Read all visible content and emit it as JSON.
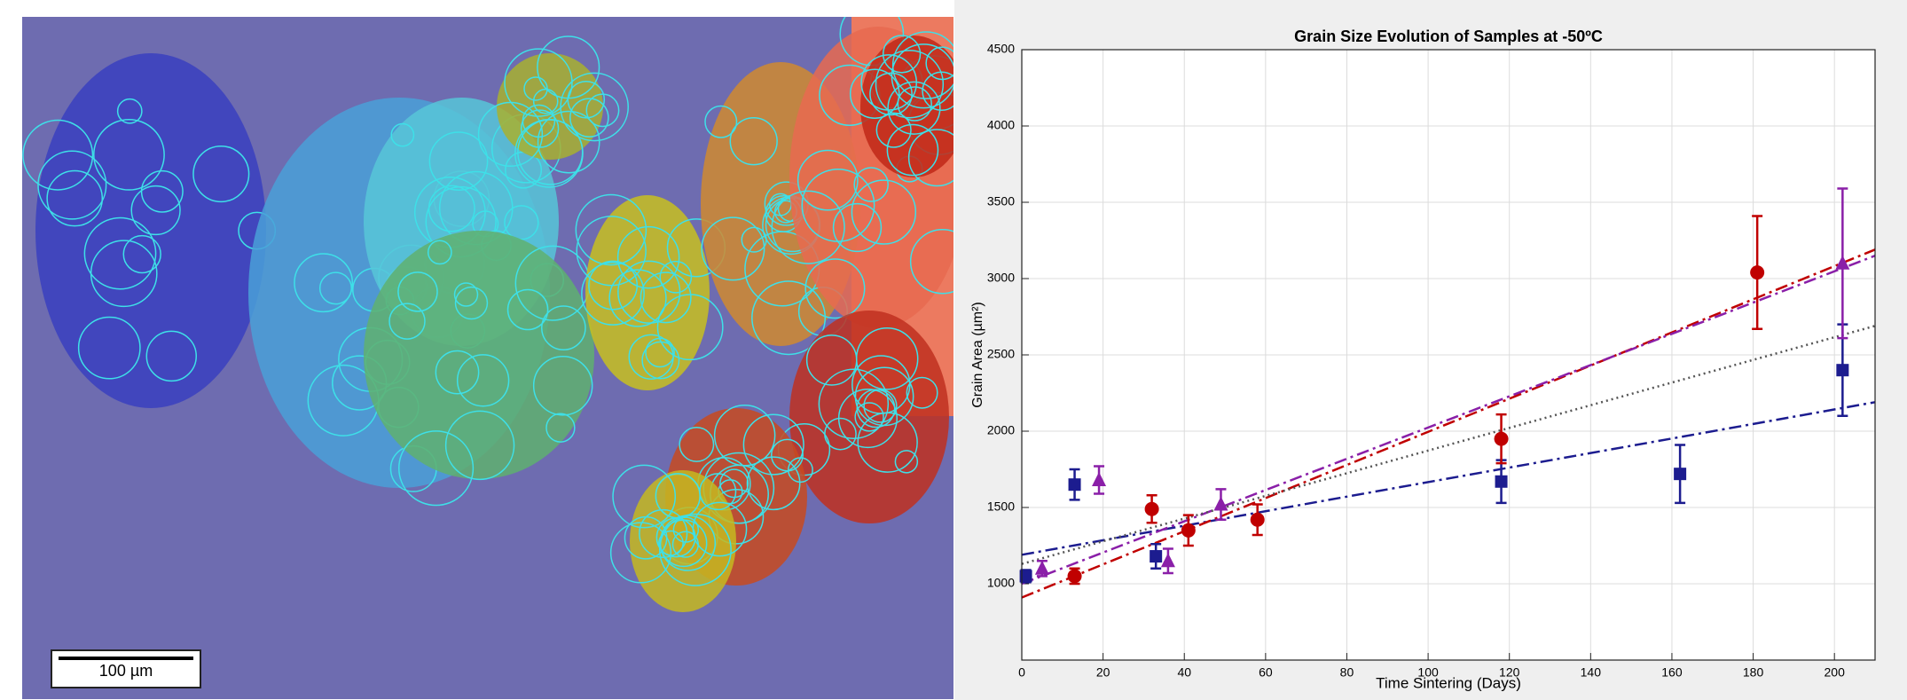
{
  "micrograph": {
    "scale_bar": "100 µm"
  },
  "chart_data": {
    "type": "scatter",
    "title": "Grain Size Evolution of Samples at -50ºC",
    "x_label": "Time Sintering (Days)",
    "y_label": "Grain Area (µm²)",
    "xlim": [
      0,
      210
    ],
    "ylim": [
      500,
      4500
    ],
    "xticks": [
      0,
      20,
      40,
      60,
      80,
      100,
      120,
      140,
      160,
      180,
      200
    ],
    "yticks": [
      1000,
      1500,
      2000,
      2500,
      3000,
      3500,
      4000,
      4500
    ],
    "grid": true,
    "series": [
      {
        "color": "#1c1c8f",
        "marker": "square",
        "x": [
          1,
          13,
          33,
          118,
          162,
          202
        ],
        "values": [
          1050,
          1650,
          1180,
          1670,
          1720,
          2400
        ],
        "error": [
          40,
          100,
          80,
          140,
          190,
          300
        ]
      },
      {
        "color": "#c00000",
        "marker": "circle",
        "x": [
          13,
          32,
          41,
          58,
          118,
          181
        ],
        "values": [
          1050,
          1490,
          1350,
          1420,
          1950,
          3040
        ],
        "error": [
          50,
          90,
          100,
          100,
          160,
          370
        ]
      },
      {
        "color": "#8a1fa8",
        "marker": "triangle",
        "x": [
          5,
          19,
          36,
          49,
          202
        ],
        "values": [
          1100,
          1680,
          1150,
          1520,
          3100
        ],
        "error": [
          50,
          90,
          80,
          100,
          490
        ]
      }
    ],
    "lines": [
      {
        "color": "#1c1c8f",
        "dash": "14 5 3 5",
        "x": [
          0,
          210
        ],
        "values": [
          1190,
          2190
        ]
      },
      {
        "color": "#c00000",
        "dash": "14 5 3 5",
        "x": [
          0,
          210
        ],
        "values": [
          910,
          3190
        ]
      },
      {
        "color": "#8a1fa8",
        "dash": "14 5 3 5",
        "x": [
          0,
          210
        ],
        "values": [
          1000,
          3150
        ]
      },
      {
        "color": "#555555",
        "dash": "2 4",
        "x": [
          0,
          210
        ],
        "values": [
          1130,
          2690
        ]
      }
    ]
  }
}
